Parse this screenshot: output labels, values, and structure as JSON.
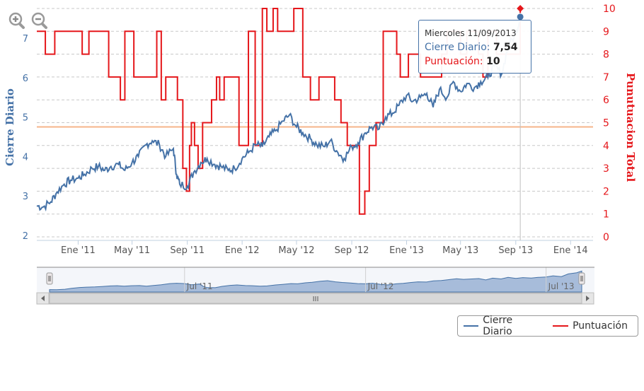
{
  "zoom_in_icon": "zoom-in-icon",
  "zoom_out_icon": "zoom-out-icon",
  "tooltip": {
    "date": "Miercoles 11/09/2013",
    "series1_label": "Cierre Diario:",
    "series1_value": "7,54",
    "series2_label": "Puntuación:",
    "series2_value": "10"
  },
  "legend": {
    "items": [
      {
        "label": "Cierre Diario",
        "color": "#4572a7"
      },
      {
        "label": "Puntuación",
        "color": "#e5171b"
      }
    ]
  },
  "navigator": {
    "labels": [
      "Jul '11",
      "Jul '12",
      "Jul '13"
    ],
    "scroll_grip": "III"
  },
  "chart_data": {
    "type": "line",
    "yaxis_left": {
      "title": "Cierre Diario",
      "ticks": [
        "2",
        "3",
        "4",
        "5",
        "6",
        "7"
      ],
      "range": [
        2,
        7.5
      ],
      "color": "#4572a7"
    },
    "yaxis_right": {
      "title": "Punutuacion Total",
      "ticks": [
        "0",
        "1",
        "2",
        "3",
        "4",
        "5",
        "6",
        "7",
        "8",
        "9",
        "10"
      ],
      "range": [
        0,
        10
      ],
      "color": "#e5171b"
    },
    "xaxis": {
      "ticks": [
        "Ene '11",
        "May '11",
        "Sep '11",
        "Ene '12",
        "May '12",
        "Sep '12",
        "Ene '13",
        "May '13",
        "Sep '13",
        "Ene '14"
      ]
    },
    "plot_line": {
      "value": 4.75,
      "axis": "left",
      "color": "#f6b48a"
    },
    "grid": true,
    "series": [
      {
        "name": "Cierre Diario",
        "color": "#4572a7",
        "axis": "left",
        "x": [
          "2010-10-01",
          "2010-10-15",
          "2010-11-01",
          "2010-11-15",
          "2010-12-01",
          "2010-12-15",
          "2011-01-01",
          "2011-01-15",
          "2011-02-01",
          "2011-02-15",
          "2011-03-01",
          "2011-03-15",
          "2011-04-01",
          "2011-04-15",
          "2011-05-01",
          "2011-05-15",
          "2011-06-01",
          "2011-06-15",
          "2011-07-01",
          "2011-07-15",
          "2011-08-01",
          "2011-08-08",
          "2011-08-15",
          "2011-09-01",
          "2011-09-15",
          "2011-10-01",
          "2011-10-15",
          "2011-11-01",
          "2011-11-15",
          "2011-12-01",
          "2011-12-15",
          "2012-01-01",
          "2012-01-15",
          "2012-02-01",
          "2012-02-15",
          "2012-03-01",
          "2012-03-15",
          "2012-04-01",
          "2012-04-15",
          "2012-05-01",
          "2012-05-15",
          "2012-06-01",
          "2012-06-15",
          "2012-07-01",
          "2012-07-15",
          "2012-08-01",
          "2012-08-15",
          "2012-09-01",
          "2012-09-15",
          "2012-10-01",
          "2012-10-15",
          "2012-11-01",
          "2012-11-15",
          "2012-12-01",
          "2012-12-15",
          "2013-01-01",
          "2013-01-15",
          "2013-02-01",
          "2013-02-15",
          "2013-03-01",
          "2013-03-15",
          "2013-04-01",
          "2013-04-15",
          "2013-05-01",
          "2013-05-15",
          "2013-06-01",
          "2013-06-15",
          "2013-07-01",
          "2013-07-15",
          "2013-08-01",
          "2013-08-15",
          "2013-09-01",
          "2013-09-11"
        ],
        "values": [
          2.75,
          2.72,
          2.85,
          3.1,
          3.3,
          3.4,
          3.45,
          3.55,
          3.7,
          3.75,
          3.65,
          3.75,
          3.8,
          3.65,
          3.85,
          4.0,
          4.3,
          4.4,
          4.3,
          4.0,
          4.2,
          3.55,
          3.3,
          3.25,
          3.6,
          3.85,
          3.95,
          3.8,
          3.75,
          3.65,
          3.7,
          3.95,
          4.1,
          4.3,
          4.25,
          4.5,
          4.65,
          4.9,
          5.05,
          4.75,
          4.6,
          4.45,
          4.3,
          4.25,
          4.4,
          4.1,
          3.95,
          4.25,
          4.35,
          4.6,
          4.75,
          4.7,
          5.0,
          5.1,
          5.3,
          5.55,
          5.4,
          5.5,
          5.6,
          5.25,
          5.7,
          5.5,
          5.9,
          5.65,
          5.85,
          5.75,
          5.9,
          6.0,
          6.3,
          6.1,
          6.8,
          7.1,
          7.54
        ]
      },
      {
        "name": "Puntuación",
        "color": "#e5171b",
        "axis": "right",
        "x": [
          "2010-10-01",
          "2010-10-20",
          "2010-11-10",
          "2011-01-10",
          "2011-01-25",
          "2011-03-10",
          "2011-04-05",
          "2011-04-15",
          "2011-05-05",
          "2011-06-25",
          "2011-07-05",
          "2011-07-15",
          "2011-07-25",
          "2011-08-10",
          "2011-08-22",
          "2011-08-30",
          "2011-09-06",
          "2011-09-10",
          "2011-09-17",
          "2011-09-25",
          "2011-10-05",
          "2011-10-25",
          "2011-11-05",
          "2011-11-12",
          "2011-11-22",
          "2011-12-25",
          "2012-01-15",
          "2012-01-30",
          "2012-02-15",
          "2012-02-25",
          "2012-03-10",
          "2012-03-20",
          "2012-04-25",
          "2012-05-15",
          "2012-06-01",
          "2012-06-20",
          "2012-07-25",
          "2012-08-08",
          "2012-08-22",
          "2012-09-01",
          "2012-09-18",
          "2012-09-30",
          "2012-10-10",
          "2012-10-25",
          "2012-11-10",
          "2012-12-10",
          "2012-12-18",
          "2013-01-05",
          "2013-02-01",
          "2013-03-20",
          "2013-04-01",
          "2013-05-01",
          "2013-05-15",
          "2013-06-10",
          "2013-06-20",
          "2013-07-01",
          "2013-07-20",
          "2013-09-11"
        ],
        "values": [
          9,
          8,
          9,
          8,
          9,
          7,
          6,
          9,
          7,
          9,
          6,
          7,
          7,
          6,
          3,
          2,
          4,
          5,
          4,
          3,
          5,
          6,
          7,
          6,
          7,
          4,
          9,
          4,
          10,
          9,
          10,
          9,
          10,
          7,
          6,
          7,
          6,
          5,
          4,
          4,
          1,
          2,
          4,
          5,
          9,
          8,
          7,
          8,
          7,
          8,
          9,
          8,
          9,
          8,
          7,
          9,
          8,
          10
        ]
      }
    ]
  }
}
